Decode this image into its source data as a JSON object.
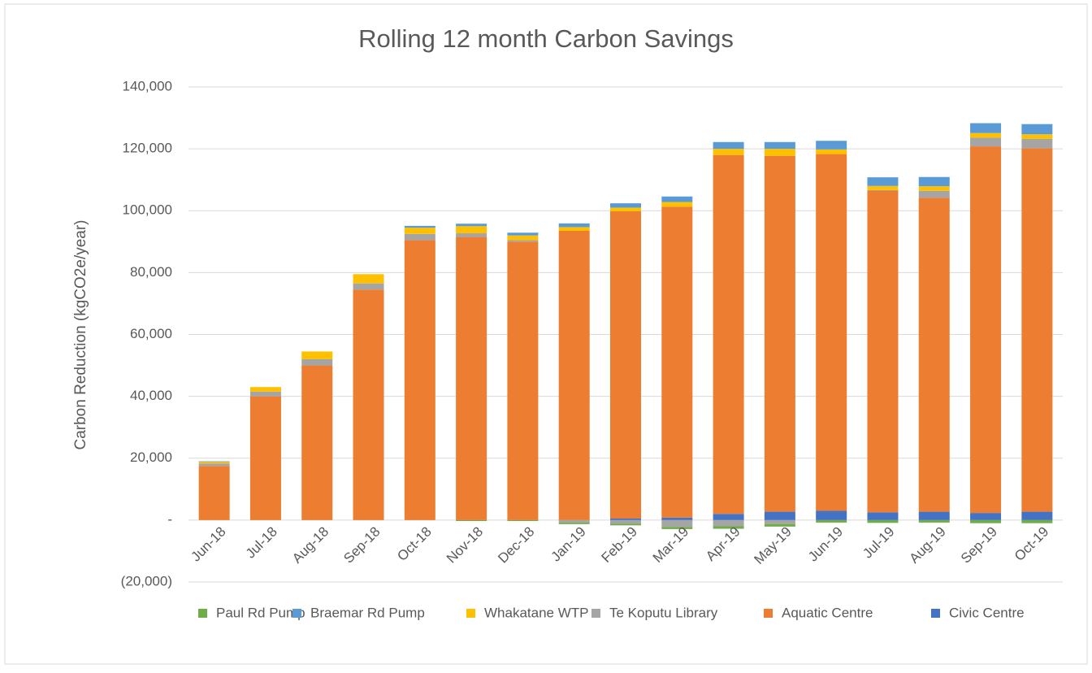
{
  "chart_data": {
    "type": "bar",
    "stacked": true,
    "title": "Rolling 12 month Carbon Savings",
    "y_label": "Carbon Reduction (kgCO2e/year)",
    "categories": [
      "Jun-18",
      "Jul-18",
      "Aug-18",
      "Sep-18",
      "Oct-18",
      "Nov-18",
      "Dec-18",
      "Jan-19",
      "Feb-19",
      "Mar-19",
      "Apr-19",
      "May-19",
      "Jun-19",
      "Jul-19",
      "Aug-19",
      "Sep-19",
      "Oct-19"
    ],
    "series": [
      {
        "name": "Paul Rd Pump",
        "color": "#70ad47",
        "values": [
          0,
          0,
          0,
          0,
          0,
          -300,
          -300,
          -500,
          -500,
          -700,
          -800,
          -800,
          -800,
          -900,
          -800,
          -1000,
          -1000
        ]
      },
      {
        "name": "Braemar Rd Pump",
        "color": "#5b9bd5",
        "values": [
          200,
          0,
          0,
          0,
          600,
          800,
          900,
          1200,
          1400,
          1800,
          2200,
          2200,
          2800,
          2800,
          3000,
          3200,
          3300
        ]
      },
      {
        "name": "Whakatane WTP",
        "color": "#ffc000",
        "values": [
          500,
          1500,
          2500,
          3000,
          2000,
          2300,
          1500,
          1200,
          1200,
          1500,
          2000,
          2300,
          1500,
          1300,
          1500,
          1500,
          1500
        ]
      },
      {
        "name": "Te Koputu Library",
        "color": "#a5a5a5",
        "values": [
          800,
          1500,
          2000,
          2000,
          2000,
          1200,
          500,
          -800,
          -1200,
          -2200,
          -2000,
          -1300,
          0,
          200,
          2200,
          2800,
          3000
        ]
      },
      {
        "name": "Aquatic Centre",
        "color": "#ed7d31",
        "values": [
          17500,
          40000,
          50000,
          74500,
          90500,
          91500,
          90000,
          93500,
          99300,
          100500,
          116000,
          115000,
          115300,
          104000,
          101500,
          118500,
          117500
        ]
      },
      {
        "name": "Civic Centre",
        "color": "#4472c4",
        "values": [
          0,
          0,
          0,
          0,
          0,
          0,
          0,
          0,
          500,
          800,
          2000,
          2700,
          3000,
          2500,
          2700,
          2300,
          2700
        ]
      }
    ],
    "ylim": [
      -20000,
      140000
    ],
    "yticks": [
      {
        "value": -20000,
        "label": "(20,000)"
      },
      {
        "value": 0,
        "label": "-"
      },
      {
        "value": 20000,
        "label": "20,000"
      },
      {
        "value": 40000,
        "label": "40,000"
      },
      {
        "value": 60000,
        "label": "60,000"
      },
      {
        "value": 80000,
        "label": "80,000"
      },
      {
        "value": 100000,
        "label": "100,000"
      },
      {
        "value": 120000,
        "label": "120,000"
      },
      {
        "value": 140000,
        "label": "140,000"
      }
    ],
    "grid": true,
    "legend": "bottom"
  }
}
